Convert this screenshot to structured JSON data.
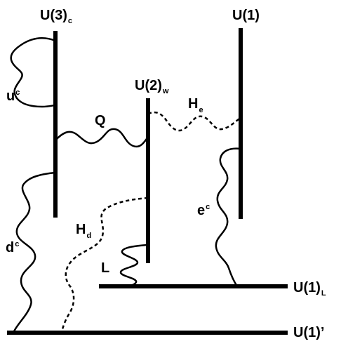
{
  "labels": {
    "u3c": {
      "base": "U(3)",
      "sub": "c"
    },
    "u1": {
      "base": "U(1)"
    },
    "u2w": {
      "base": "U(2)",
      "sub": "w"
    },
    "u1L": {
      "base": "U(1)",
      "sub": "L"
    },
    "u1p": {
      "base": "U(1)’"
    },
    "uc": {
      "base": "u",
      "sup": "c"
    },
    "q": {
      "base": "Q"
    },
    "he": {
      "base": "H",
      "sub": "e"
    },
    "ec": {
      "base": "e",
      "sup": "c"
    },
    "hd": {
      "base": "H",
      "sub": "d"
    },
    "dc": {
      "base": "d",
      "sup": "c"
    },
    "l": {
      "base": "L"
    }
  },
  "colors": {
    "stroke": "#000000",
    "background": "#ffffff"
  }
}
